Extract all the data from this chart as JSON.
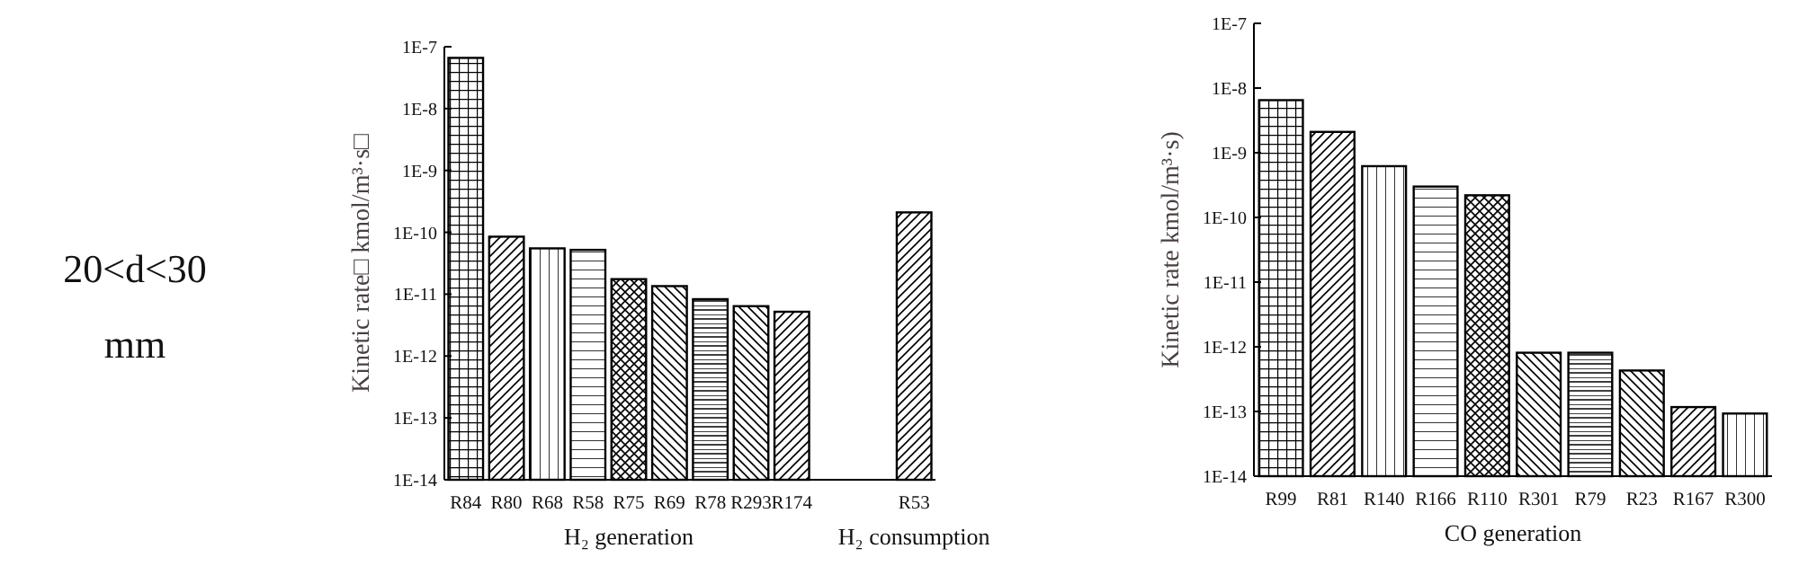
{
  "chart_data": [
    {
      "type": "other",
      "annotations": [
        "20<d<30",
        "mm"
      ]
    },
    {
      "type": "bar",
      "categories": [
        "R84",
        "R80",
        "R68",
        "R58",
        "R75",
        "R69",
        "R78",
        "R293",
        "R174",
        null,
        null,
        "R53"
      ],
      "values": [
        6.6e-08,
        8.5e-11,
        5.5e-11,
        5.2e-11,
        1.75e-11,
        1.35e-11,
        8.3e-12,
        6.4e-12,
        5.2e-12,
        null,
        null,
        2.1e-10
      ],
      "color": "#000000",
      "log": true,
      "ylim": [
        1e-14,
        1e-07
      ],
      "yticks": [
        {
          "value": 1e-14,
          "label": "1E-14"
        },
        {
          "value": 1e-13,
          "label": "1E-13"
        },
        {
          "value": 1e-12,
          "label": "1E-12"
        },
        {
          "value": 1e-11,
          "label": "1E-11"
        },
        {
          "value": 1e-10,
          "label": "1E-10"
        },
        {
          "value": 1e-09,
          "label": "1E-9"
        },
        {
          "value": 1e-08,
          "label": "1E-8"
        },
        {
          "value": 1e-07,
          "label": "1E-7"
        }
      ],
      "ylabel": "Kinetic rate□ kmol/m³·s□",
      "xlabel": "H₂ generation",
      "annotations": [
        "H₂ consumption"
      ]
    },
    {
      "type": "bar",
      "categories": [
        "R99",
        "R81",
        "R140",
        "R166",
        "R110",
        "R301",
        "R79",
        "R23",
        "R167",
        "R300"
      ],
      "values": [
        6.5e-09,
        2.1e-09,
        6.2e-10,
        3e-10,
        2.2e-10,
        8.1e-13,
        8.1e-13,
        4.3e-13,
        1.17e-13,
        9.3e-14
      ],
      "color": "#000000",
      "log": true,
      "ylim": [
        1e-14,
        1e-07
      ],
      "yticks": [
        {
          "value": 1e-14,
          "label": "1E-14"
        },
        {
          "value": 1e-13,
          "label": "1E-13"
        },
        {
          "value": 1e-12,
          "label": "1E-12"
        },
        {
          "value": 1e-11,
          "label": "1E-11"
        },
        {
          "value": 1e-10,
          "label": "1E-10"
        },
        {
          "value": 1e-09,
          "label": "1E-9"
        },
        {
          "value": 1e-08,
          "label": "1E-8"
        },
        {
          "value": 1e-07,
          "label": "1E-7"
        }
      ],
      "ylabel": "Kinetic rate  kmol/m³·s)",
      "xlabel": "CO generation"
    }
  ]
}
